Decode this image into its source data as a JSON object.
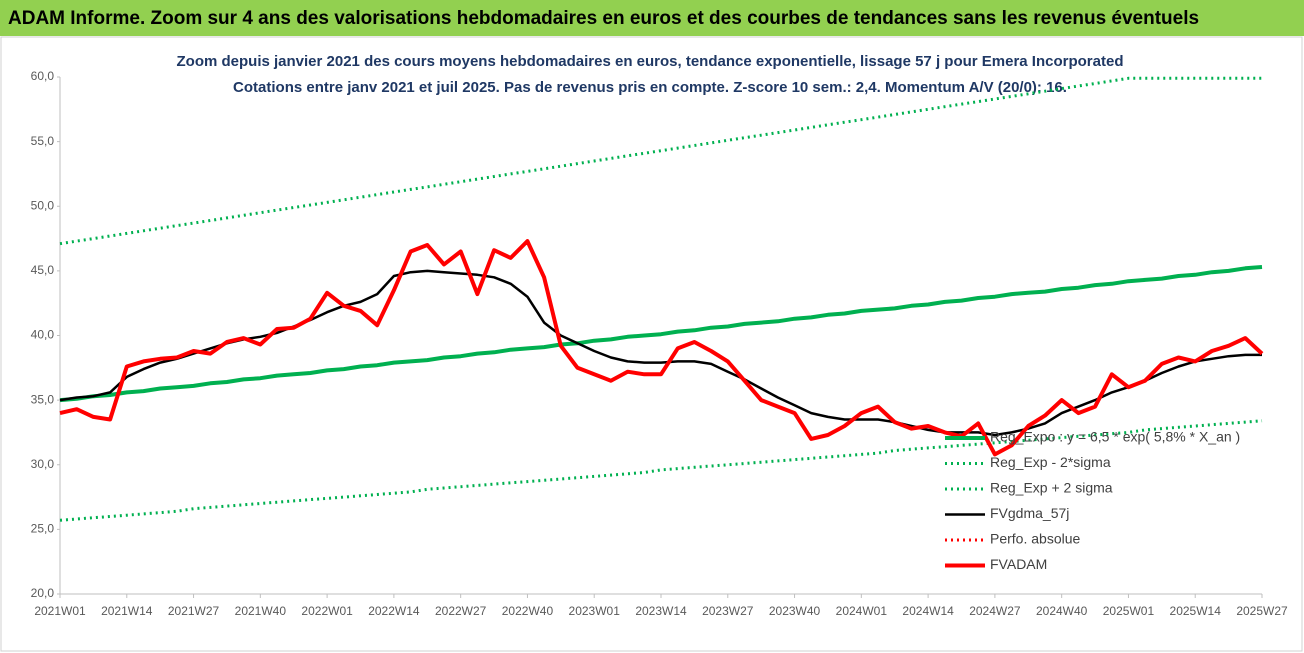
{
  "chart_data": {
    "type": "line",
    "banner": "ADAM Informe. Zoom sur 4 ans des valorisations hebdomadaires en euros et des courbes de tendances sans les revenus éventuels",
    "title": "Zoom depuis janvier 2021 des cours moyens hebdomadaires en euros, tendance exponentielle, lissage 57 j pour Emera Incorporated",
    "subtitle": "Cotations entre janv 2021 et juil 2025. Pas de revenus pris en compte. Z-score 10 sem.: 2,4. Momentum A/V (20/0): 16.",
    "categories": [
      "2021W01",
      null,
      null,
      null,
      "2021W14",
      null,
      null,
      null,
      "2021W27",
      null,
      null,
      null,
      "2021W40",
      null,
      null,
      null,
      "2022W01",
      null,
      null,
      null,
      "2022W14",
      null,
      null,
      null,
      "2022W27",
      null,
      null,
      null,
      "2022W40",
      null,
      null,
      null,
      "2023W01",
      null,
      null,
      null,
      "2023W14",
      null,
      null,
      null,
      "2023W27",
      null,
      null,
      null,
      "2023W40",
      null,
      null,
      null,
      "2024W01",
      null,
      null,
      null,
      "2024W14",
      null,
      null,
      null,
      "2024W27",
      null,
      null,
      null,
      "2024W40",
      null,
      null,
      null,
      "2025W01",
      null,
      null,
      null,
      "2025W14",
      null,
      null,
      null,
      "2025W27"
    ],
    "ylim": [
      20,
      60
    ],
    "yticks": [
      {
        "value": 20,
        "label": "20,0"
      },
      {
        "value": 25,
        "label": "25,0"
      },
      {
        "value": 30,
        "label": "30,0"
      },
      {
        "value": 35,
        "label": "35,0"
      },
      {
        "value": 40,
        "label": "40,0"
      },
      {
        "value": 45,
        "label": "45,0"
      },
      {
        "value": 50,
        "label": "50,0"
      },
      {
        "value": 55,
        "label": "55,0"
      },
      {
        "value": 60,
        "label": "60,0"
      }
    ],
    "grid": false,
    "series": [
      {
        "name": "Reg_Expo : y = 6,5 * exp( 5,8% * X_an )",
        "color": "#00b050",
        "line_style": "solid",
        "values": [
          35.0,
          35.1,
          35.3,
          35.4,
          35.6,
          35.7,
          35.9,
          36.0,
          36.1,
          36.3,
          36.4,
          36.6,
          36.7,
          36.9,
          37.0,
          37.1,
          37.3,
          37.4,
          37.6,
          37.7,
          37.9,
          38.0,
          38.1,
          38.3,
          38.4,
          38.6,
          38.7,
          38.9,
          39.0,
          39.1,
          39.3,
          39.4,
          39.6,
          39.7,
          39.9,
          40.0,
          40.1,
          40.3,
          40.4,
          40.6,
          40.7,
          40.9,
          41.0,
          41.1,
          41.3,
          41.4,
          41.6,
          41.7,
          41.9,
          42.0,
          42.1,
          42.3,
          42.4,
          42.6,
          42.7,
          42.9,
          43.0,
          43.2,
          43.3,
          43.4,
          43.6,
          43.7,
          43.9,
          44.0,
          44.2,
          44.3,
          44.4,
          44.6,
          44.7,
          44.9,
          45.0,
          45.2,
          45.3
        ]
      },
      {
        "name": "Reg_Exp - 2*sigma",
        "color": "#00b050",
        "line_style": "dotted",
        "values": [
          25.7,
          25.8,
          25.9,
          26.0,
          26.1,
          26.2,
          26.3,
          26.4,
          26.6,
          26.7,
          26.8,
          26.9,
          27.0,
          27.1,
          27.2,
          27.3,
          27.4,
          27.5,
          27.6,
          27.7,
          27.8,
          27.9,
          28.1,
          28.2,
          28.3,
          28.4,
          28.5,
          28.6,
          28.7,
          28.8,
          28.9,
          29.0,
          29.1,
          29.2,
          29.3,
          29.4,
          29.6,
          29.7,
          29.8,
          29.9,
          30.0,
          30.1,
          30.2,
          30.3,
          30.4,
          30.5,
          30.6,
          30.7,
          30.8,
          30.9,
          31.1,
          31.2,
          31.3,
          31.4,
          31.5,
          31.6,
          31.7,
          31.8,
          31.9,
          32.0,
          32.1,
          32.2,
          32.3,
          32.4,
          32.5,
          32.7,
          32.8,
          32.9,
          33.0,
          33.1,
          33.2,
          33.3,
          33.4
        ]
      },
      {
        "name": "Reg_Exp + 2 sigma",
        "color": "#00b050",
        "line_style": "dotted",
        "values": [
          47.1,
          47.3,
          47.5,
          47.7,
          47.9,
          48.1,
          48.3,
          48.5,
          48.7,
          48.9,
          49.1,
          49.3,
          49.5,
          49.7,
          49.9,
          50.1,
          50.3,
          50.5,
          50.7,
          50.9,
          51.1,
          51.3,
          51.5,
          51.7,
          51.9,
          52.1,
          52.3,
          52.5,
          52.7,
          52.9,
          53.1,
          53.3,
          53.5,
          53.7,
          53.9,
          54.1,
          54.3,
          54.5,
          54.7,
          54.9,
          55.1,
          55.3,
          55.5,
          55.7,
          55.9,
          56.1,
          56.3,
          56.5,
          56.7,
          56.9,
          57.1,
          57.3,
          57.5,
          57.7,
          57.9,
          58.1,
          58.3,
          58.5,
          58.7,
          58.9,
          59.1,
          59.3,
          59.5,
          59.7,
          59.9,
          59.9,
          59.9,
          59.9,
          59.9,
          59.9,
          59.9,
          59.9,
          59.9
        ]
      },
      {
        "name": "FVgdma_57j",
        "color": "#000000",
        "line_style": "solid",
        "values": [
          35.0,
          35.2,
          35.3,
          35.6,
          36.8,
          37.4,
          37.9,
          38.2,
          38.6,
          39.0,
          39.4,
          39.7,
          39.9,
          40.2,
          40.7,
          41.2,
          41.8,
          42.3,
          42.6,
          43.2,
          44.6,
          44.9,
          45.0,
          44.9,
          44.8,
          44.7,
          44.5,
          44.0,
          43.0,
          41.0,
          40.0,
          39.4,
          38.8,
          38.3,
          38.0,
          37.9,
          37.9,
          38.0,
          38.0,
          37.8,
          37.2,
          36.6,
          35.9,
          35.2,
          34.6,
          34.0,
          33.7,
          33.5,
          33.5,
          33.5,
          33.3,
          33.0,
          32.7,
          32.5,
          32.5,
          32.5,
          32.3,
          32.5,
          32.8,
          33.2,
          34.0,
          34.5,
          35.0,
          35.6,
          36.0,
          36.5,
          37.1,
          37.6,
          38.0,
          38.2,
          38.4,
          38.5,
          38.5
        ]
      },
      {
        "name": "Perfo. absolue",
        "color": "#ff0000",
        "line_style": "dotted",
        "values": [
          null,
          null,
          null,
          null,
          null,
          null,
          null,
          null,
          null,
          null,
          null,
          null,
          null,
          null,
          null,
          null,
          null,
          null,
          null,
          null,
          null,
          null,
          null,
          null,
          null,
          null,
          null,
          null,
          null,
          null,
          null,
          null,
          null,
          null,
          null,
          null,
          null,
          null,
          null,
          null,
          null,
          null,
          null,
          null,
          null,
          null,
          null,
          null,
          null,
          null,
          null,
          null,
          null,
          null,
          null,
          null,
          null,
          null,
          null,
          null,
          null,
          null,
          null,
          null,
          null,
          null,
          null,
          null,
          null,
          null,
          null,
          null,
          null
        ]
      },
      {
        "name": "FVADAM",
        "color": "#ff0000",
        "line_style": "solid",
        "values": [
          34.0,
          34.3,
          33.7,
          33.5,
          37.6,
          38.0,
          38.2,
          38.3,
          38.8,
          38.6,
          39.5,
          39.8,
          39.3,
          40.5,
          40.6,
          41.3,
          43.3,
          42.3,
          41.9,
          40.8,
          43.5,
          46.5,
          47.0,
          45.5,
          46.5,
          43.2,
          46.6,
          46.0,
          47.3,
          44.5,
          39.2,
          37.5,
          37.0,
          36.5,
          37.2,
          37.0,
          37.0,
          39.0,
          39.5,
          38.8,
          38.0,
          36.5,
          35.0,
          34.5,
          34.0,
          32.0,
          32.3,
          33.0,
          34.0,
          34.5,
          33.3,
          32.8,
          33.0,
          32.5,
          32.2,
          33.2,
          30.8,
          31.5,
          33.0,
          33.8,
          35.0,
          34.0,
          34.5,
          37.0,
          36.0,
          36.5,
          37.8,
          38.3,
          38.0,
          38.8,
          39.2,
          39.8,
          38.6
        ]
      }
    ]
  }
}
